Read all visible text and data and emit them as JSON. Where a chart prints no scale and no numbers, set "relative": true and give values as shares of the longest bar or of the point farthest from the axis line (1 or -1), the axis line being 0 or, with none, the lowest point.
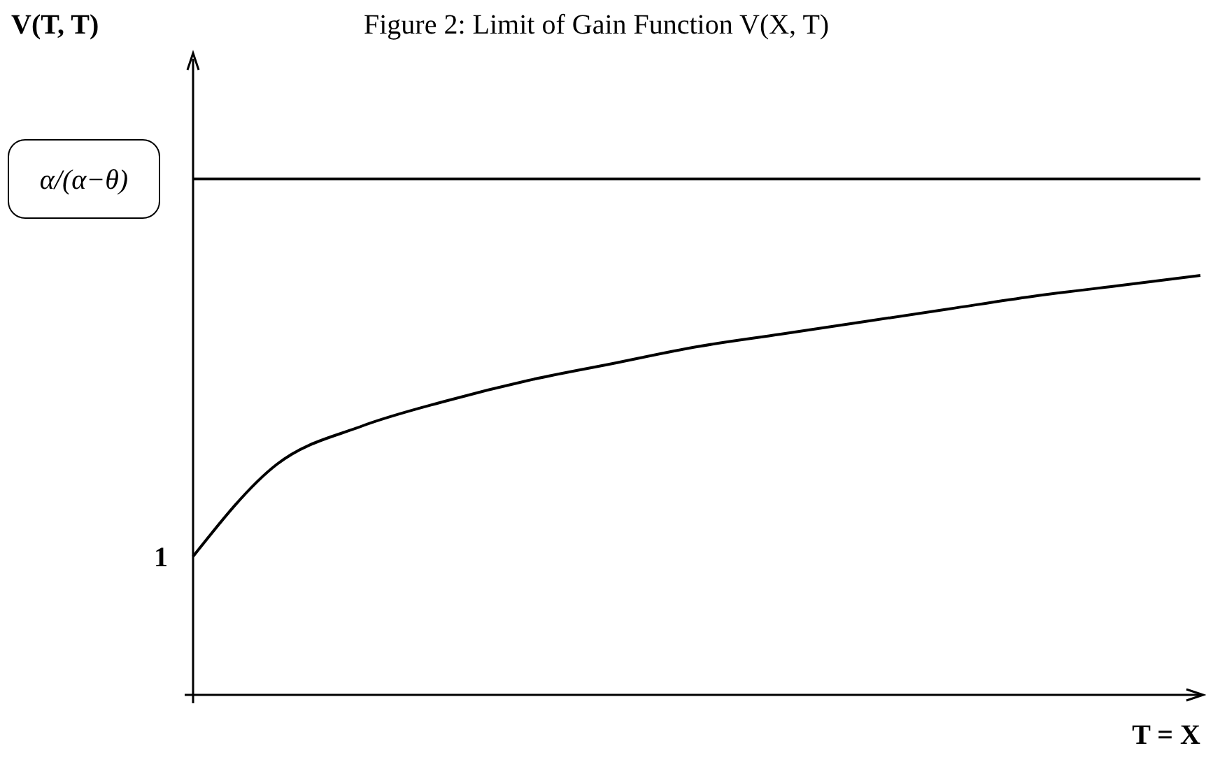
{
  "chart_data": {
    "type": "line",
    "title": "Figure 2: Limit of Gain Function V(X, T)",
    "xlabel": "T = X",
    "relative": true,
    "categories": [
      null,
      null,
      null,
      null,
      null,
      null,
      null,
      null,
      null,
      null,
      null,
      null,
      null
    ],
    "series": [
      {
        "color": "#000000",
        "values": [
          0.33,
          0.55,
          0.64,
          0.7,
          0.75,
          0.79,
          0.83,
          0.86,
          0.89,
          0.92,
          0.95,
          0.975,
          1
        ]
      }
    ],
    "ref_lines": [
      {
        "axis": "y",
        "value": 1.23,
        "label": "α/(α−θ)",
        "color": "#000000"
      }
    ],
    "annotations": [
      "V(T, T)",
      "1"
    ],
    "marker": "none",
    "line_style": "solid"
  }
}
